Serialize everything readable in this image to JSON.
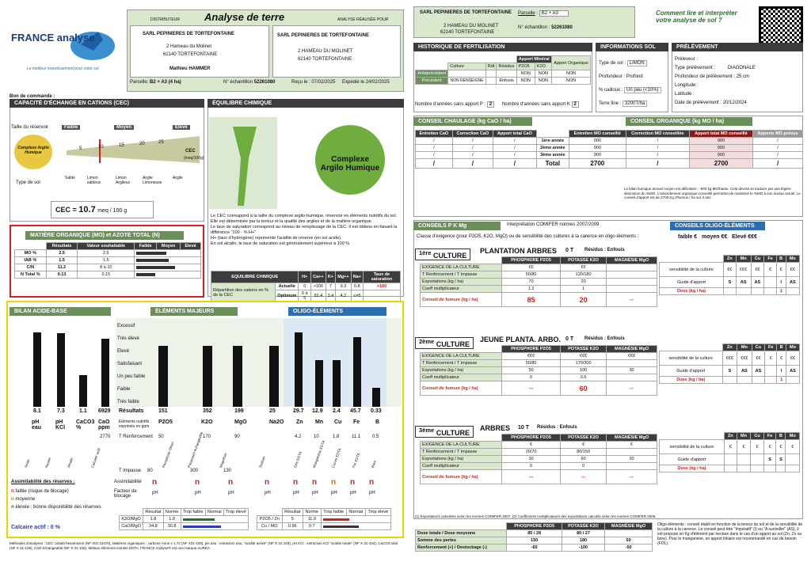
{
  "brand": {
    "name": "FRANCE analyse",
    "tagline": "Le meilleur investissement pour votre sol"
  },
  "title": "Analyse de terre",
  "distributor": {
    "label": "DISTRIBUTEUR",
    "name": "SARL PEPINIERES DE TORTEFONTAINE",
    "address": "2 Hameau du Molinet",
    "city": "62140 TORTEFONTAINE",
    "contact": "Mathieu HAMMER"
  },
  "realised": {
    "label": "ANALYSE RÉALISÉE POUR",
    "name": "SARL PEPINIERES DE TORTEFONTAINE",
    "address": "2 HAMEAU DU MOLINET",
    "city": "62140 TORTEFONTAINE"
  },
  "parcel": {
    "label": "Parcelle",
    "value": "B2 + A3 (4 ha)",
    "ech_label": "N° échantillon",
    "ech": "52261080",
    "recu": "Reçu le : 07/02/2025",
    "expedie": "Expédié le 24/02/2025"
  },
  "bon": "Bon de commande :",
  "cec": {
    "title": "CAPACITÉ D'ÉCHANGE EN CATIONS (CEC)",
    "taille": "Taille du réservoir",
    "levels": [
      "Faible",
      "Moyen",
      "Elevé"
    ],
    "ticks": [
      "5",
      "10",
      "15",
      "20",
      "25"
    ],
    "complexe": "Complexe Argilo Humique",
    "cec_label": "CEC",
    "unit_small": "(meq/100g)",
    "types_label": "Type de sol",
    "types": [
      "Sable",
      "Limon sableux",
      "Limon Argileux",
      "Argile Limoneuse",
      "Argile"
    ],
    "value_label": "CEC =",
    "value": "10.7",
    "unit": "meq / 100 g"
  },
  "mo": {
    "title": "MATIÈRE ORGANIQUE (MO) et AZOTE TOTAL (N)",
    "cols": [
      "Résultats",
      "Valeur souhaitable",
      "Faible",
      "Moyen",
      "Elevé"
    ],
    "rows": [
      {
        "label": "MO %",
        "res": "2.5",
        "val": "2.5",
        "fill": 0.45
      },
      {
        "label": "IAB %",
        "res": "1.5",
        "val": "1.5",
        "fill": 0.5
      },
      {
        "label": "C/N",
        "res": "11.2",
        "val": "8 à 10",
        "fill": 0.6
      },
      {
        "label": "N Total %",
        "res": "0.13",
        "val": "0.15",
        "fill": 0.3
      }
    ]
  },
  "equi": {
    "title": "ÉQUILIBRE CHIMIQUE",
    "complexe": "Complexe Argilo Humique",
    "text1": "Le CEC correspond à la taille du complexe argilo-humique, réservoir en éléments nutritifs du sol. Elle est déterminée par la teneur et la qualité des argiles et de la matière organique.",
    "text2": "Le taux de saturation correspond au niveau de remplissage de la CEC. Il est obtenu en faisant la différence \"100 - % H+\"",
    "text3": "H+ (taux d'hydrogène) représente l'acidité de réserve (en sol acide).",
    "text4": "En sol alcalin, le taux de saturation est généralement supérieur à 100 %.",
    "table": {
      "head": [
        "EQUILIBRE CHIMIQUE",
        "H+",
        "Ca++",
        "K+",
        "Mg++",
        "Na+",
        "Taux de saturation"
      ],
      "rowlabel": "Répartition des cations en % de la CEC",
      "rows": [
        {
          "n": "Actuelle",
          "v": [
            "0",
            ">100",
            "7",
            "9.3",
            "0.8",
            ">100"
          ]
        },
        {
          "n": "Optimum",
          "v": [
            "0 à 5",
            "92.4",
            "3.4",
            "4.2",
            "<=5",
            ""
          ]
        }
      ]
    }
  },
  "acid": {
    "title": "BILAN ACIDE-BASE",
    "values": [
      "8.1",
      "7.3",
      "1.1",
      "6929"
    ],
    "labels": [
      "pH eau",
      "pH KCl",
      "CaCO3 %",
      "CaO ppm"
    ],
    "opt": "2770",
    "heights": [
      0.97,
      0.96,
      0.35,
      0.92
    ],
    "cat": [
      "Acide",
      "Neutre",
      "Alcalin",
      "Calcaire actif"
    ],
    "calc": "Calcaire actif : 0 %"
  },
  "major": {
    "title": "ÉLÉMENTS MAJEURS",
    "levels": [
      "Excessif",
      "Très élevé",
      "Elevé",
      "Satisfaisant",
      "Un peu faible",
      "Faible",
      "Très faible"
    ],
    "res_label": "Résultats",
    "expr": "Eléments nutritifs exprimés en ppm",
    "tr_label": "T Renforcement",
    "values": [
      "151",
      "352",
      "199",
      "25"
    ],
    "names": [
      "P2O5",
      "K2O",
      "MgO",
      "Na2O"
    ],
    "tr": [
      "50",
      "170",
      "90",
      ""
    ],
    "ti_label": "T Impasse",
    "ti": [
      "80",
      "300",
      "130",
      ""
    ],
    "heights": [
      0.78,
      0.78,
      0.78,
      0.78
    ],
    "cat": [
      "Phosphore Olsen",
      "Potassium échangeable",
      "Magnésie",
      "Sodium"
    ]
  },
  "oligo": {
    "title": "OLIGO-ÉLÉMENTS",
    "values": [
      "29.7",
      "12.9",
      "2.4",
      "45.7",
      "0.33"
    ],
    "names": [
      "Zn",
      "Mn",
      "Cu",
      "Fe",
      "B"
    ],
    "tr": [
      "4.2",
      "10",
      "1.8",
      "11.1",
      "0.5"
    ],
    "heights": [
      0.97,
      0.6,
      0.6,
      0.9,
      0.2
    ],
    "cat": [
      "Zinc EDTA",
      "Manganèse EDTA",
      "Cuivre EDTA",
      "Fer EDTA",
      "Bore"
    ]
  },
  "assim": {
    "title": "Assimilabilité des réserves :",
    "legend": [
      {
        "c": "n",
        "t": "faible (risque de blocage)"
      },
      {
        "c": "n",
        "t": "moyenne"
      },
      {
        "c": "n",
        "t": "élevée : bonne disponibilité des réserves"
      }
    ],
    "row1": "Assimilabilité",
    "row2": "Facteur de blocage",
    "major": [
      "n",
      "n",
      "n",
      "n"
    ],
    "majorc": [
      "red",
      "red",
      "red",
      "red"
    ],
    "block": [
      "pH",
      "pH",
      "pH",
      "pH"
    ],
    "oligo": [
      "n",
      "n",
      "n",
      "n",
      "n"
    ],
    "oligoc": [
      "red",
      "red",
      "org",
      "red",
      "red"
    ],
    "oblock": [
      "pH",
      "pH",
      "pH",
      "pH",
      "pH"
    ]
  },
  "ratios": {
    "head": [
      "Résultat",
      "Norme",
      "Trop faible",
      "Normal",
      "Trop élevé"
    ],
    "rows": [
      {
        "l": "K2O/MgO",
        "r": "1.8",
        "n": "1.9"
      },
      {
        "l": "CaO/MgO",
        "r": "34.8",
        "n": "30.8"
      }
    ],
    "rows2": [
      {
        "l": "P2O5 / Zn",
        "r": "5",
        "n": "11.9"
      },
      {
        "l": "Cu / MO",
        "r": "0.96",
        "n": "0.7"
      }
    ]
  },
  "footer": "Méthodes d'analyses : CEC cobalti-hexammine (NF ISO 23470), Matières organiques : carbone Anne x 1,72 (NF X31-109), pH eau : extraction eau, \"acidité active\" (NF X 31-103), pH KCl : extraction KCl \"acidité totale\" (NF X 31-104), CaCO3 total (NF X 31-105), CaO échangeable (NF X 31-108). Métaux éléments extraits EDTA. FRANCE Analyse® est une marque AUREA.",
  "r_head": {
    "name": "SARL PEPINIERES DE TORTEFONTAINE",
    "address": "2 HAMEAU DU MOLINET",
    "city": "62140 TORTEFONTAINE",
    "parcelle_label": "Parcelle",
    "parcelle": "B2 + A3",
    "ech_label": "N° échantillon :",
    "ech": "52261080",
    "comment": "Comment lire et interpréter votre analyse de sol ?"
  },
  "histo": {
    "title": "HISTORIQUE DE FERTILISATION",
    "apport_min": "Apport Minéral",
    "apport_org": "Apport Organique",
    "cols": [
      "Culture",
      "Rdt",
      "Résidus",
      "P2O5",
      "K2O"
    ],
    "ante": "Antéprécédent",
    "prec": "Précédent",
    "nonr": "NON RENSEIGNE",
    "enfouis": "Enfouis",
    "non": "NON",
    "napp": "Nombre d'années sans apport P :",
    "nappk": "Nombre d'années sans apport K",
    "p": "2",
    "k": "2"
  },
  "info": {
    "title": "INFORMATIONS SOL",
    "rows": [
      {
        "l": "Type de sol :",
        "v": "LIMON"
      },
      {
        "l": "Profondeur :",
        "v": "Profond"
      },
      {
        "l": "% cailloux :",
        "v": "Un peu (<10%)"
      },
      {
        "l": "Terre fine :",
        "v": "3200T/ha"
      }
    ]
  },
  "prel": {
    "title": "PRÉLÈVEMENT",
    "rows": [
      {
        "l": "Préleveur :",
        "v": ""
      },
      {
        "l": "Type prélèvement :",
        "v": "DIAGONALE"
      },
      {
        "l": "Profondeur de prélèvement :",
        "v": "25 cm"
      },
      {
        "l": "Longitude :",
        "v": ""
      },
      {
        "l": "Latitude :",
        "v": ""
      },
      {
        "l": "Date de prélèvement :",
        "v": "20/12/2024"
      }
    ]
  },
  "chaulage": {
    "title": "CONSEIL CHAULAGE (kg CaO / ha)",
    "cols": [
      "Entretien CaO",
      "Correction CaO",
      "Apport total CaO"
    ],
    "years": [
      "1ère année",
      "2ème année",
      "3ème année",
      "Total"
    ]
  },
  "orga": {
    "title": "CONSEIL ORGANIQUE (kg MO / ha)",
    "cols": [
      "Entretien MO conseillé",
      "Correction MO conseillée",
      "Apport total MO conseillé",
      "Apports MO prévus"
    ],
    "rows": [
      [
        "900",
        "/",
        "900",
        "/"
      ],
      [
        "900",
        "/",
        "900",
        "/"
      ],
      [
        "900",
        "/",
        "900",
        "/"
      ],
      [
        "2700",
        "/",
        "2700",
        "/"
      ]
    ],
    "note": "Le bilan humique annuel moyen est déficitaire : -900 kg MO/ha/an. Cela devrait se traduire par une légère diminution du %MO. L'amendement organique conseillé permettra de maintenir le %MO à son niveau actuel. Le conseil d'apport est de 2700 Kg d'humus / ha sur 3 ans."
  },
  "pk": {
    "title": "CONSEILS P K Mg",
    "interp": "Interprétation COMIFER normes 2007/2009",
    "oligo_title": "CONSEILS OLIGO-ÉLÉMENTS",
    "classe": "Classe d'exigence (pour P2O5, K2O, MgO) ou de sensibilité des cultures à la carence en oligo-éléments :",
    "faible": "faible",
    "moyen": "moyen",
    "eleve": "Elevé",
    "cultures": [
      {
        "num": "1ère",
        "title": "PLANTATION ARBRES",
        "t": "0 T",
        "res": "Résidus : Enfouis",
        "ex": [
          "€€",
          "€€",
          ""
        ],
        "tr": [
          "50/80",
          "120/180",
          ""
        ],
        "exp": [
          "70",
          "20",
          ""
        ],
        "coef": [
          "1.2",
          "1",
          ""
        ],
        "dose": [
          "85",
          "20",
          "---"
        ],
        "sens": [
          "€€",
          "€€€",
          "€€",
          "€",
          "€",
          "€€"
        ],
        "guide": [
          "S",
          "AS",
          "AS",
          "",
          "I",
          "AS"
        ],
        "dosef": [
          "",
          "",
          "",
          "",
          "1",
          ""
        ]
      },
      {
        "num": "2ème",
        "title": "JEUNE PLANTA. ARBO.",
        "t": "0 T",
        "res": "Résidus : Enfouis",
        "ex": [
          "€€€",
          "€€€",
          "€€€"
        ],
        "tr": [
          "50/80",
          "170/300",
          ""
        ],
        "exp": [
          "50",
          "100",
          "30"
        ],
        "coef": [
          "0",
          "0.6",
          ""
        ],
        "dose": [
          "---",
          "60",
          "---"
        ],
        "sens": [
          "€€€",
          "€€€",
          "€€",
          "€",
          "€",
          "€€"
        ],
        "guide": [
          "S",
          "AS",
          "AS",
          "",
          "I",
          "AS"
        ],
        "dosef": [
          "",
          "",
          "",
          "",
          "1",
          ""
        ]
      },
      {
        "num": "3ème",
        "title": "ARBRES",
        "t": "10 T",
        "res": "Résidus : Enfouis",
        "ex": [
          "€",
          "€",
          "€"
        ],
        "tr": [
          "20/70",
          "80/150",
          ""
        ],
        "exp": [
          "30",
          "60",
          "20"
        ],
        "coef": [
          "0",
          "0",
          ""
        ],
        "dose": [
          "---",
          "---",
          "---"
        ],
        "sens": [
          "€",
          "€",
          "€",
          "€",
          "€",
          "€"
        ],
        "guide": [
          "",
          "",
          "",
          "S",
          "S",
          ""
        ],
        "dosef": [
          "",
          "",
          "",
          "",
          "",
          ""
        ]
      }
    ],
    "heads": [
      "PHOSPHORE P2O5",
      "POTASSE K2O",
      "MAGNÉSIE MgO"
    ],
    "rowlabels": [
      "EXIGENCE DE LA CULTURE",
      "T Renforcement / T Impasse",
      "Exportations (kg / ha)",
      "Coeff multiplicateur",
      "Conseil de fumure (kg / ha)"
    ],
    "ohead": [
      "Zn",
      "Mn",
      "Cu",
      "Fe",
      "B",
      "Mo"
    ],
    "olabels": [
      "sensibilité de la culture",
      "Guide d'apport",
      "Dose (kg / ha)"
    ]
  },
  "totals": {
    "note": "(1) Exportations calculées selon les normes COMIFER 2007. (2) Coefficients multiplicateurs des exportations calculés selon les normes COMIFER 2009.",
    "head": [
      "PHOSPHORE P2O5",
      "POTASSE K2O",
      "MAGNÉSIE MgO"
    ],
    "rows": [
      {
        "l": "Dose totale / Dose moyenne",
        "v": [
          "85 / 28",
          "80 / 27",
          ""
        ]
      },
      {
        "l": "Somme des pertes",
        "v": [
          "150",
          "180",
          "50"
        ]
      },
      {
        "l": "Renforcement (+) / Destockage (-)",
        "v": [
          "-65",
          "-100",
          "-50"
        ]
      }
    ],
    "oligo_note": "Oligo-éléments : conseil établi en fonction de la teneur du sol et de la sensibilité de la culture à la carence. Le conseil peut être \"Impératif\" (I) ou \"A surveiller\" (AS), il est proposé en Kg d'élément par hectare dans le cas d'un apport au sol (Zn, Zn ou bore). Pour le manganèse, un apport foliaire est recommandé en cas de besoin (FOL)."
  }
}
